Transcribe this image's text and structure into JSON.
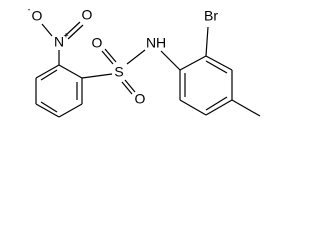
{
  "atoms": [
    {
      "label": "O",
      "charge": "-"
    },
    {
      "label": "N",
      "charge": "+"
    },
    {
      "label": "O"
    },
    {
      "label": "S"
    },
    {
      "label": "O"
    },
    {
      "label": "O"
    },
    {
      "label": "N"
    },
    {
      "label": "H"
    },
    {
      "label": "Br"
    }
  ]
}
